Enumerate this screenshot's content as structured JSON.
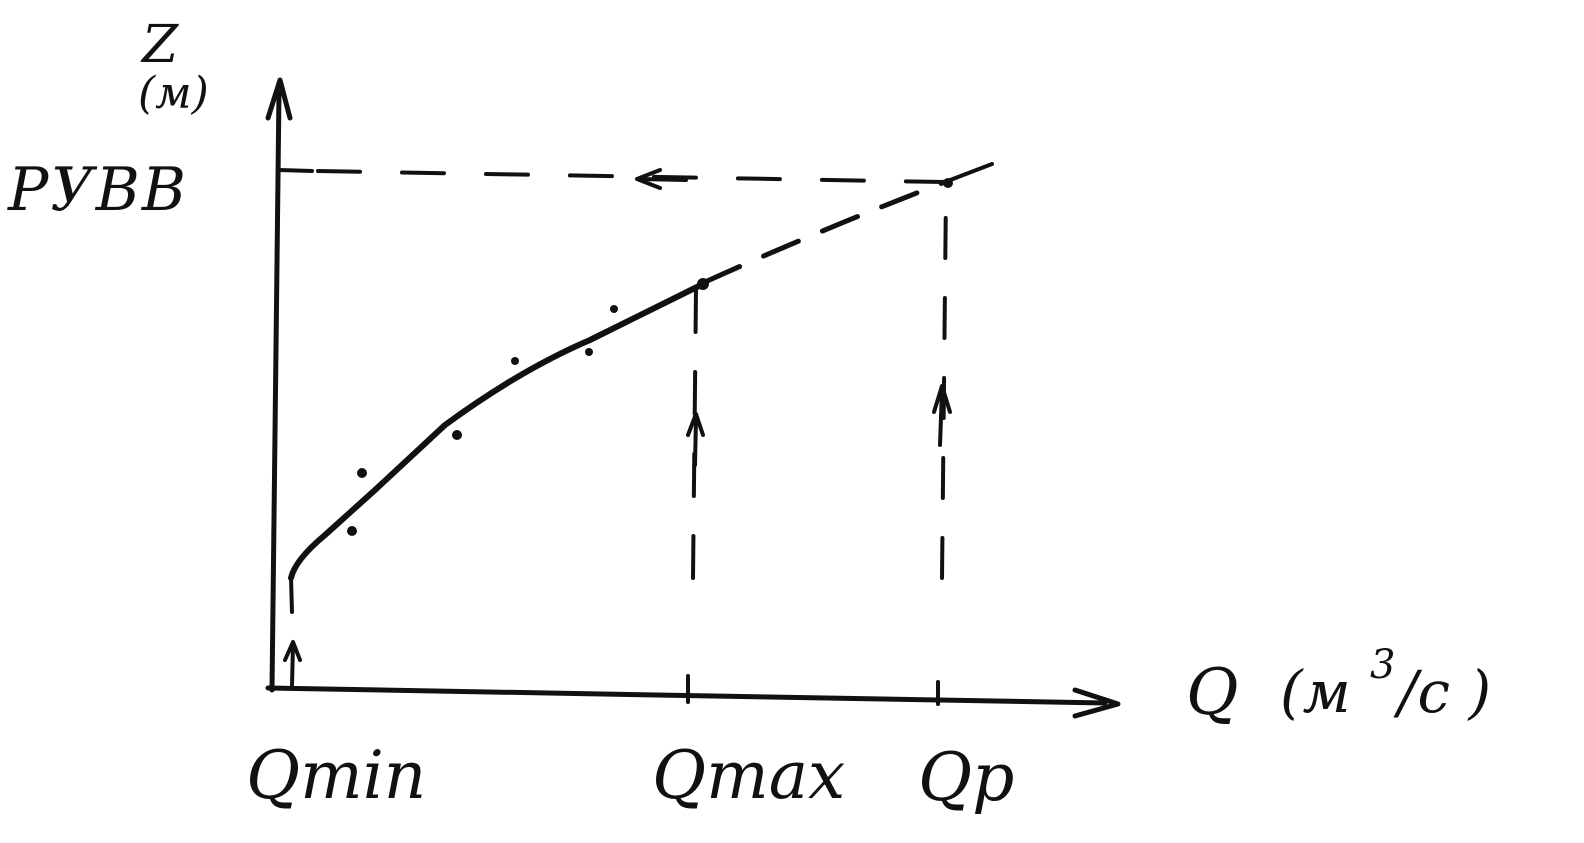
{
  "labels": {
    "y_axis_symbol": "Z",
    "y_axis_unit": "(м)",
    "level_mark": "РУВВ",
    "x_axis_symbol": "Q",
    "x_axis_unit_open": "(м",
    "x_axis_unit_power": "3",
    "x_axis_unit_close": "/с )",
    "q_min": "Qmin",
    "q_max": "Qmax",
    "q_p": "Qр"
  },
  "colors": {
    "ink": "#111111",
    "paper": "#ffffff"
  }
}
